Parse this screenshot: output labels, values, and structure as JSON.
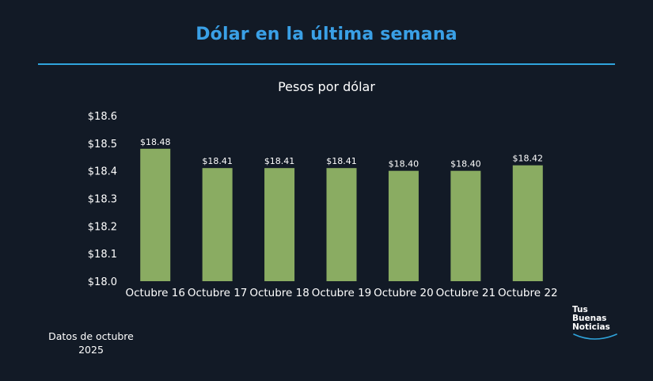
{
  "header": {
    "title": "Dólar en la última semana",
    "subtitle": "Pesos por dólar"
  },
  "footnote": {
    "line1": "Datos de octubre",
    "line2": "2025"
  },
  "brand": {
    "line1": "Tus",
    "line2": "Buenas",
    "line3": "Noticias"
  },
  "colors": {
    "background": "#121a26",
    "title": "#3aa0e6",
    "divider": "#2fa4dc",
    "bar": "#8aac62",
    "brand_arc": "#2fa4dc"
  },
  "chart_data": {
    "type": "bar",
    "title": "Pesos por dólar",
    "xlabel": "",
    "ylabel": "",
    "categories": [
      "Octubre 16",
      "Octubre 17",
      "Octubre 18",
      "Octubre 19",
      "Octubre 20",
      "Octubre 21",
      "Octubre 22"
    ],
    "values": [
      18.48,
      18.41,
      18.41,
      18.41,
      18.4,
      18.4,
      18.42
    ],
    "value_labels": [
      "$18.48",
      "$18.41",
      "$18.41",
      "$18.41",
      "$18.40",
      "$18.40",
      "$18.42"
    ],
    "ylim": [
      18.0,
      18.6
    ],
    "yticks": [
      18.0,
      18.1,
      18.2,
      18.3,
      18.4,
      18.5,
      18.6
    ],
    "ytick_labels": [
      "$18.0",
      "$18.1",
      "$18.2",
      "$18.3",
      "$18.4",
      "$18.5",
      "$18.6"
    ],
    "grid": false,
    "legend": "none"
  }
}
